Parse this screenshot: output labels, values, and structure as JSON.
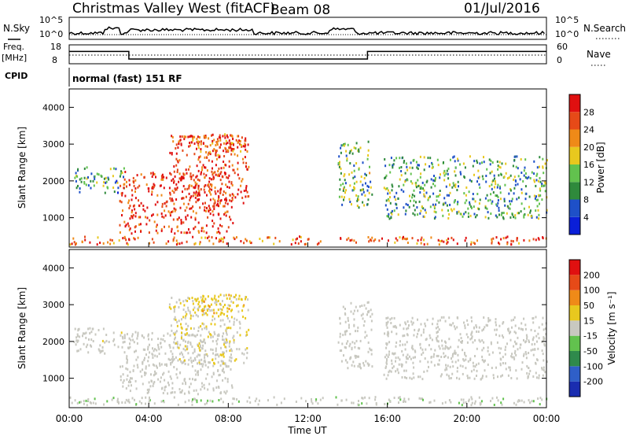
{
  "header": {
    "title": "Christmas Valley West (fitACF)",
    "beam": "Beam 08",
    "date": "01/Jul/2016"
  },
  "panels": {
    "nsky_label": "N.Sky",
    "nsearch_label": "N.Search",
    "nsky_ticks": [
      "10^5",
      "10^0"
    ],
    "nsearch_ticks": [
      "10^5",
      "10^0"
    ],
    "freq_label_1": "Freq.",
    "freq_label_2": "[MHz]",
    "freq_ticks": [
      "18",
      "8"
    ],
    "nave_label": "Nave",
    "nave_ticks": [
      "60",
      "0"
    ],
    "cpid_label": "CPID",
    "cpid_text": "normal (fast) 151 RF"
  },
  "power_panel": {
    "ylabel": "Slant Range [km]",
    "yticks": [
      "1000",
      "2000",
      "3000",
      "4000"
    ],
    "colorbar_label": "Power [dB]",
    "colorbar_ticks": [
      "4",
      "8",
      "12",
      "16",
      "20",
      "24",
      "28"
    ],
    "colors": [
      "#0a1fd8",
      "#1e50c8",
      "#2f8a3c",
      "#62c24e",
      "#e8c81e",
      "#ef8a18",
      "#e64a18",
      "#e01010"
    ]
  },
  "velocity_panel": {
    "ylabel": "Slant Range [km]",
    "yticks": [
      "1000",
      "2000",
      "3000",
      "4000"
    ],
    "colorbar_label": "Velocity [m s⁻¹]",
    "colorbar_ticks": [
      "200",
      "100",
      "50",
      "15",
      "-15",
      "-50",
      "-100",
      "-200"
    ],
    "colors": [
      "#1a2db0",
      "#2f5fc8",
      "#2f8a4c",
      "#62c24e",
      "#c8c8c0",
      "#e8c81e",
      "#ef8a18",
      "#e64a18",
      "#e01010"
    ]
  },
  "xaxis": {
    "label": "Time UT",
    "ticks": [
      "00:00",
      "04:00",
      "08:00",
      "12:00",
      "16:00",
      "20:00",
      "00:00"
    ]
  },
  "chart_data": {
    "type": "heatmap",
    "title": "Christmas Valley West (fitACF)",
    "x_range_hours": [
      0,
      24
    ],
    "y_range_km": [
      200,
      4500
    ],
    "freq_trace": {
      "x": [
        0,
        3,
        3,
        15,
        15,
        24
      ],
      "y": [
        14.5,
        14.5,
        10.5,
        10.5,
        14.5,
        14.5
      ]
    },
    "scatter_regions": [
      {
        "name": "near-range ground echoes",
        "t0": 0,
        "t1": 24,
        "r0": 300,
        "r1": 520,
        "power": 26,
        "velocity": 10
      },
      {
        "name": "early morning band",
        "t0": 0.2,
        "t1": 2.8,
        "r0": 1700,
        "r1": 2400,
        "power": 12,
        "velocity": -5
      },
      {
        "name": "main night echo",
        "t0": 2.5,
        "t1": 8.2,
        "r0": 600,
        "r1": 2300,
        "power": 29,
        "velocity": 0
      },
      {
        "name": "rising arc",
        "t0": 5.0,
        "t1": 9.0,
        "r0": 1400,
        "r1": 3300,
        "power": 28,
        "velocity": -20
      },
      {
        "name": "upper patches",
        "t0": 6.0,
        "t1": 8.8,
        "r0": 2700,
        "r1": 3300,
        "power": 24,
        "velocity": -60
      },
      {
        "name": "afternoon descending band",
        "t0": 13.5,
        "t1": 15.2,
        "r0": 1300,
        "r1": 3100,
        "power": 14,
        "velocity": 5
      },
      {
        "name": "evening band",
        "t0": 15.8,
        "t1": 24,
        "r0": 1000,
        "r1": 2700,
        "power": 13,
        "velocity": 0
      }
    ]
  }
}
